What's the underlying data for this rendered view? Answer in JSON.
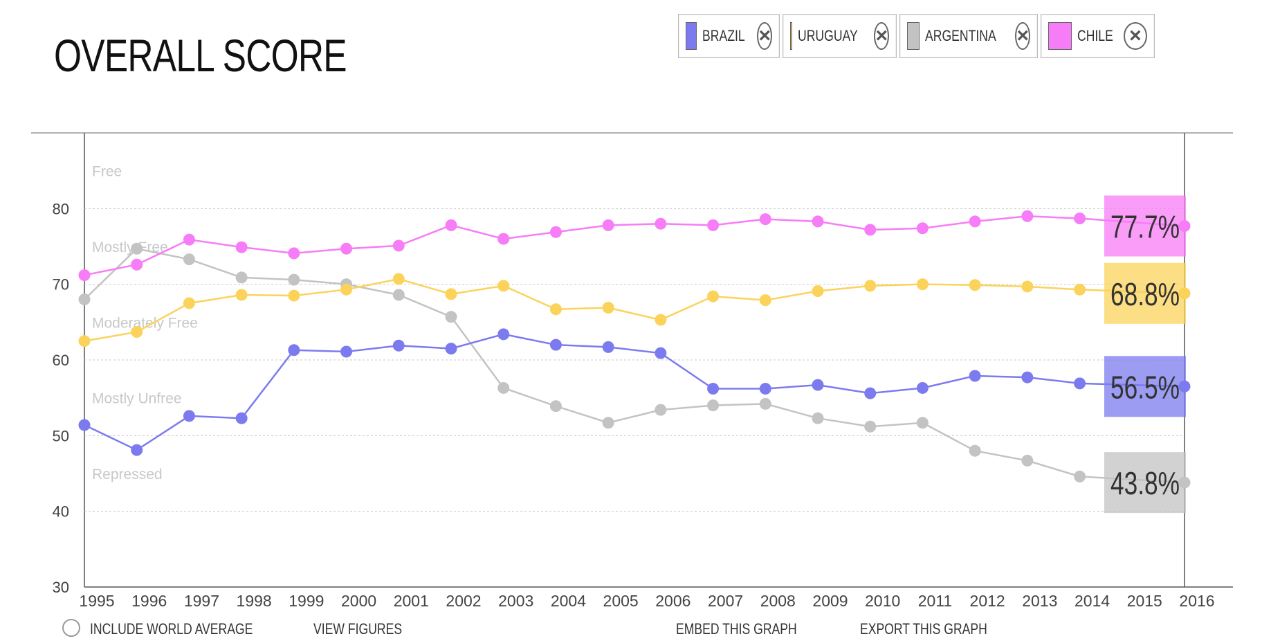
{
  "title": "OVERALL SCORE",
  "legend": [
    {
      "name": "BRAZIL",
      "color": "#7b7bef",
      "remove_icon": "close-circle-icon"
    },
    {
      "name": "URUGUAY",
      "color": "#fbd35b",
      "remove_icon": "close-circle-icon"
    },
    {
      "name": "ARGENTINA",
      "color": "#c3c3c3",
      "remove_icon": "close-circle-icon"
    },
    {
      "name": "CHILE",
      "color": "#f77cf7",
      "remove_icon": "close-circle-icon"
    }
  ],
  "footer": {
    "include_world_average": "INCLUDE WORLD AVERAGE",
    "view_figures": "VIEW FIGURES",
    "embed": "EMBED THIS GRAPH",
    "export": "EXPORT THIS GRAPH"
  },
  "chart_data": {
    "type": "line",
    "title": "OVERALL SCORE",
    "x": [
      1995,
      1996,
      1997,
      1998,
      1999,
      2000,
      2001,
      2002,
      2003,
      2004,
      2005,
      2006,
      2007,
      2008,
      2009,
      2010,
      2011,
      2012,
      2013,
      2014,
      2015,
      2016
    ],
    "ylim": [
      30,
      90
    ],
    "yticks": [
      30,
      40,
      50,
      60,
      70,
      80
    ],
    "grid": true,
    "bands": [
      "Free",
      "Mostly Free",
      "Moderately Free",
      "Mostly Unfree",
      "Repressed"
    ],
    "series": [
      {
        "name": "BRAZIL",
        "color": "#7b7bef",
        "label": "56.5%",
        "values": [
          51.4,
          48.1,
          52.6,
          52.3,
          61.3,
          61.1,
          61.9,
          61.5,
          63.4,
          62.0,
          61.7,
          60.9,
          56.2,
          56.2,
          56.7,
          55.6,
          56.3,
          57.9,
          57.7,
          56.9,
          null,
          56.5
        ]
      },
      {
        "name": "URUGUAY",
        "color": "#fbd35b",
        "label": "68.8%",
        "values": [
          62.5,
          63.7,
          67.5,
          68.6,
          68.5,
          69.3,
          70.7,
          68.7,
          69.8,
          66.7,
          66.9,
          65.3,
          68.4,
          67.9,
          69.1,
          69.8,
          70.0,
          69.9,
          69.7,
          69.3,
          null,
          68.8
        ]
      },
      {
        "name": "ARGENTINA",
        "color": "#c3c3c3",
        "label": "43.8%",
        "values": [
          68.0,
          74.7,
          73.3,
          70.9,
          70.6,
          70.0,
          68.6,
          65.7,
          56.3,
          53.9,
          51.7,
          53.4,
          54.0,
          54.2,
          52.3,
          51.2,
          51.7,
          48.0,
          46.7,
          44.6,
          null,
          43.8
        ]
      },
      {
        "name": "CHILE",
        "color": "#f77cf7",
        "label": "77.7%",
        "values": [
          71.2,
          72.6,
          75.9,
          74.9,
          74.1,
          74.7,
          75.1,
          77.8,
          76.0,
          76.9,
          77.8,
          78.0,
          77.8,
          78.6,
          78.3,
          77.2,
          77.4,
          78.3,
          79.0,
          78.7,
          null,
          77.7
        ]
      }
    ]
  }
}
